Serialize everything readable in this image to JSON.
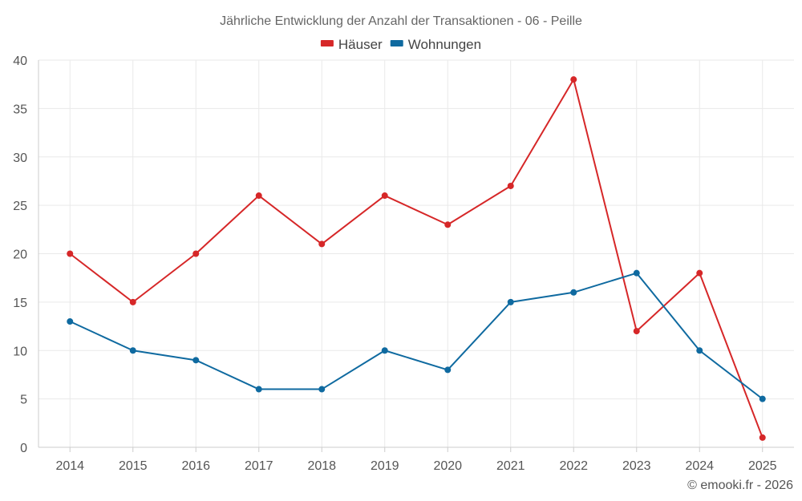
{
  "chart_data": {
    "type": "line",
    "title": "Jährliche Entwicklung der Anzahl der Transaktionen - 06 - Peille",
    "categories": [
      "2014",
      "2015",
      "2016",
      "2017",
      "2018",
      "2019",
      "2020",
      "2021",
      "2022",
      "2023",
      "2024",
      "2025"
    ],
    "series": [
      {
        "name": "Häuser",
        "color": "#d62728",
        "values": [
          20,
          15,
          20,
          26,
          21,
          26,
          23,
          27,
          38,
          12,
          18,
          1
        ]
      },
      {
        "name": "Wohnungen",
        "color": "#0f6aa0",
        "values": [
          13,
          10,
          9,
          6,
          6,
          10,
          8,
          15,
          16,
          18,
          10,
          5
        ]
      }
    ],
    "ylim": [
      0,
      40
    ],
    "yticks": [
      0,
      5,
      10,
      15,
      20,
      25,
      30,
      35,
      40
    ],
    "xlabel": "",
    "ylabel": "",
    "grid": true,
    "legend": "top-center"
  },
  "credit": "© emooki.fr - 2026"
}
